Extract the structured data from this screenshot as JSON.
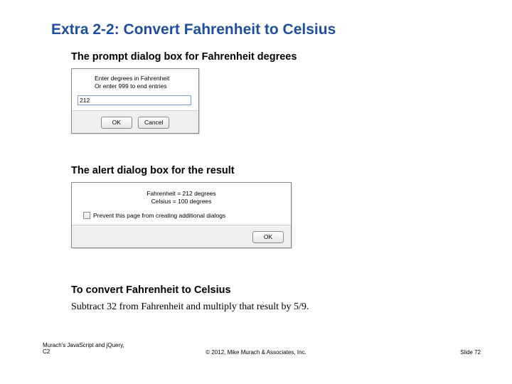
{
  "title": "Extra 2-2: Convert Fahrenheit to Celsius",
  "sections": {
    "heading1": "The prompt dialog box for Fahrenheit degrees",
    "heading2": "The alert dialog box for the result",
    "heading3": "To convert Fahrenheit to Celsius"
  },
  "prompt": {
    "line1": "Enter degrees in Fahrenheit",
    "line2": "Or enter 999 to end entries",
    "input_value": "212",
    "ok_label": "OK",
    "cancel_label": "Cancel"
  },
  "alert": {
    "line1": "Fahrenheit = 212 degrees",
    "line2": "Celsius = 100 degrees",
    "checkbox_label": "Prevent this page from creating additional dialogs",
    "ok_label": "OK"
  },
  "body_text": "Subtract 32 from Fahrenheit and multiply that result by 5/9.",
  "footer": {
    "left_line1": "Murach's JavaScript and jQuery,",
    "left_line2": "C2",
    "center": "© 2012, Mike Murach & Associates, Inc.",
    "right": "Slide 72"
  }
}
